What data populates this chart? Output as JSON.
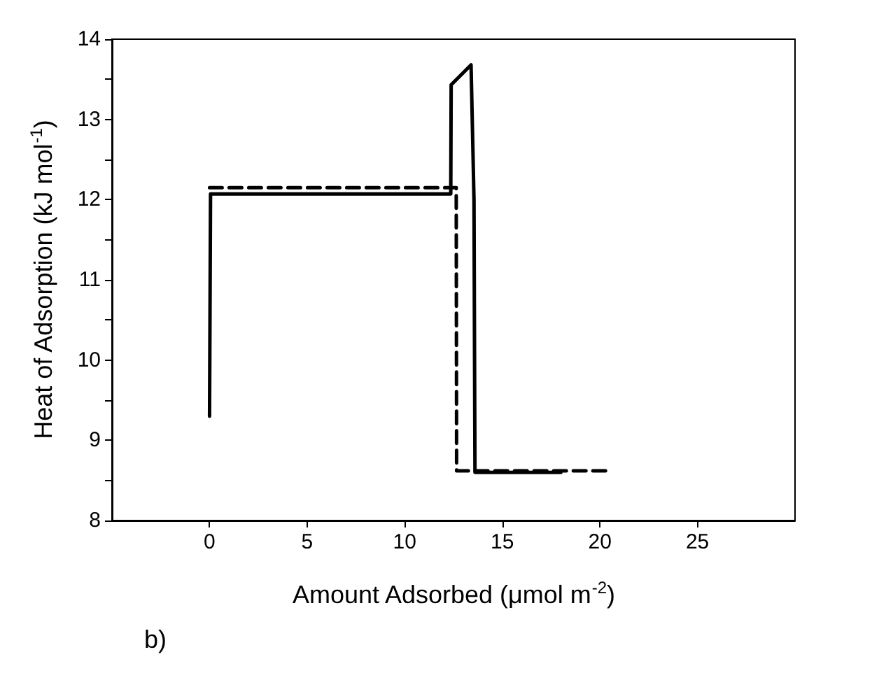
{
  "chart_data": {
    "type": "line",
    "xlabel": "Amount Adsorbed (μmol m$^{-2}$)",
    "ylabel": "Heat of Adsorption (kJ mol$^{-1}$)",
    "annotations": [
      "b)"
    ],
    "xlim": [
      -5,
      30
    ],
    "xticks": [
      0,
      5,
      10,
      15,
      20,
      25
    ],
    "ylim": [
      8,
      14
    ],
    "yticks": [
      8,
      {
        "value": 8.5,
        "label": null
      },
      9,
      {
        "value": 9.5,
        "label": null
      },
      10,
      {
        "value": 10.5,
        "label": null
      },
      11,
      {
        "value": 11.5,
        "label": null
      },
      12,
      {
        "value": 12.5,
        "label": null
      },
      13,
      {
        "value": 13.5,
        "label": null
      },
      14
    ],
    "grid": false,
    "marker": "none",
    "series": [
      {
        "color": "#000000",
        "line_style": "solid",
        "x": [
          0,
          0.05,
          12.36,
          12.38,
          13.4,
          13.55,
          13.6,
          18.0
        ],
        "values": [
          9.3,
          12.07,
          12.07,
          13.43,
          13.68,
          12.0,
          8.6,
          8.6
        ]
      },
      {
        "color": "#000000",
        "line_style": "dashed",
        "x": [
          0,
          12.64,
          12.66,
          20.35
        ],
        "values": [
          12.15,
          12.15,
          8.62,
          8.62
        ]
      }
    ]
  }
}
